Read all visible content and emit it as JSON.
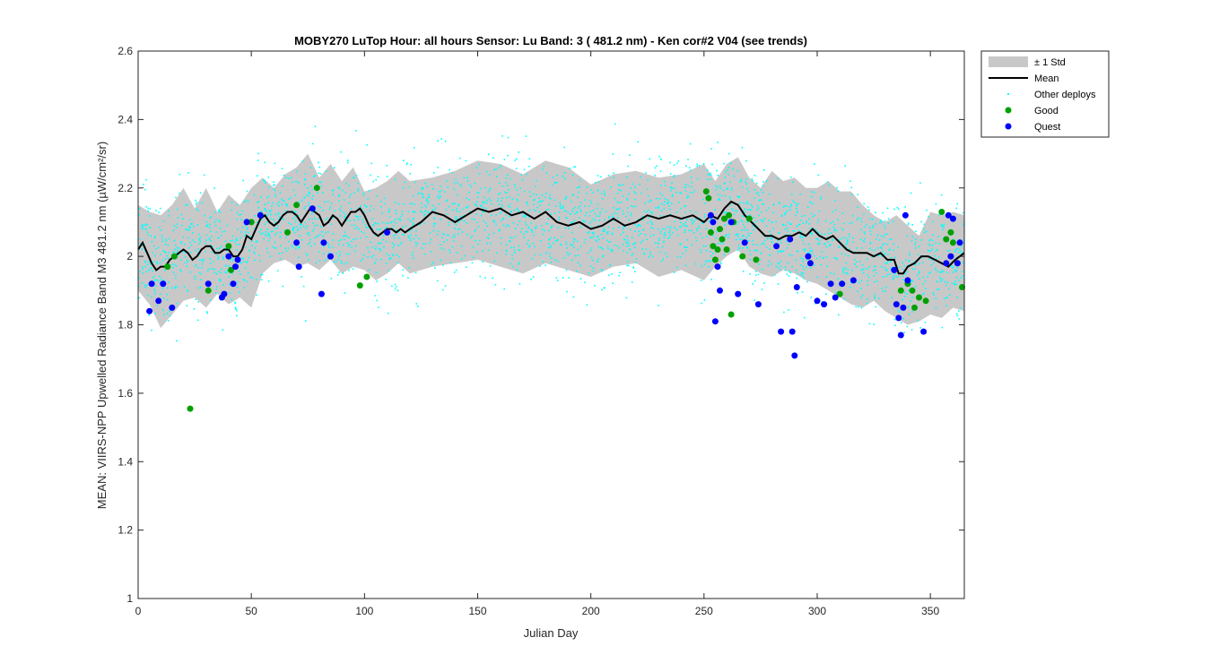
{
  "chart_data": {
    "type": "scatter",
    "title": "MOBY270   LuTop  Hour: all hours  Sensor: Lu Band: 3 ( 481.2 nm)  - Ken cor#2 V04 (see trends)",
    "xlabel": "Julian Day",
    "ylabel": "MEAN: VIIRS-NPP Upwelled Radiance Band M3 481.2 nm (µW/cm²/sr)",
    "xlim": [
      0,
      365
    ],
    "ylim": [
      1,
      2.6
    ],
    "xticks": [
      "0",
      "50",
      "100",
      "150",
      "200",
      "250",
      "300",
      "350"
    ],
    "yticks": [
      "1",
      "1.2",
      "1.4",
      "1.6",
      "1.8",
      "2",
      "2.2",
      "2.4",
      "2.6"
    ],
    "grid": false,
    "legend_position": "outside-top-right",
    "legend": [
      {
        "label": "± 1 Std",
        "kind": "band",
        "color": "#c8c8c8"
      },
      {
        "label": "Mean",
        "kind": "line",
        "color": "#000000"
      },
      {
        "label": "Other deploys",
        "kind": "dot",
        "color": "#00ffff"
      },
      {
        "label": "Good",
        "kind": "marker",
        "color": "#00a000"
      },
      {
        "label": "Quest",
        "kind": "marker",
        "color": "#0000ff"
      }
    ],
    "series": [
      {
        "name": "Mean",
        "x": [
          0,
          2,
          4,
          6,
          8,
          10,
          12,
          14,
          16,
          18,
          20,
          22,
          24,
          26,
          28,
          30,
          32,
          34,
          36,
          38,
          40,
          42,
          44,
          46,
          48,
          50,
          52,
          54,
          56,
          58,
          60,
          62,
          64,
          66,
          68,
          70,
          72,
          74,
          76,
          78,
          80,
          82,
          84,
          86,
          88,
          90,
          92,
          94,
          96,
          98,
          100,
          102,
          104,
          106,
          108,
          110,
          112,
          114,
          116,
          118,
          120,
          125,
          130,
          135,
          140,
          145,
          150,
          155,
          160,
          165,
          170,
          175,
          180,
          185,
          190,
          195,
          200,
          205,
          210,
          215,
          220,
          225,
          230,
          235,
          240,
          245,
          250,
          253,
          256,
          259,
          262,
          265,
          268,
          271,
          274,
          277,
          280,
          283,
          286,
          289,
          292,
          295,
          298,
          301,
          304,
          307,
          310,
          313,
          316,
          319,
          322,
          325,
          328,
          331,
          334,
          336,
          338,
          340,
          343,
          346,
          349,
          352,
          355,
          358,
          361,
          363,
          365
        ],
        "values": [
          2.02,
          2.04,
          2.01,
          1.98,
          1.96,
          1.97,
          1.97,
          1.99,
          2.0,
          2.01,
          2.02,
          2.01,
          1.99,
          2.0,
          2.02,
          2.03,
          2.03,
          2.01,
          2.01,
          2.02,
          2.02,
          2.0,
          2.0,
          2.02,
          2.06,
          2.05,
          2.08,
          2.11,
          2.12,
          2.1,
          2.09,
          2.1,
          2.12,
          2.13,
          2.13,
          2.12,
          2.1,
          2.12,
          2.14,
          2.13,
          2.12,
          2.09,
          2.1,
          2.12,
          2.11,
          2.09,
          2.11,
          2.13,
          2.13,
          2.14,
          2.12,
          2.09,
          2.07,
          2.06,
          2.07,
          2.08,
          2.08,
          2.07,
          2.08,
          2.07,
          2.08,
          2.1,
          2.13,
          2.12,
          2.1,
          2.12,
          2.14,
          2.13,
          2.14,
          2.12,
          2.13,
          2.11,
          2.13,
          2.1,
          2.09,
          2.1,
          2.08,
          2.09,
          2.11,
          2.09,
          2.1,
          2.12,
          2.11,
          2.12,
          2.11,
          2.12,
          2.1,
          2.12,
          2.11,
          2.14,
          2.16,
          2.15,
          2.12,
          2.1,
          2.08,
          2.06,
          2.06,
          2.05,
          2.06,
          2.06,
          2.07,
          2.06,
          2.08,
          2.06,
          2.05,
          2.06,
          2.04,
          2.02,
          2.01,
          2.01,
          2.01,
          2.0,
          2.01,
          1.99,
          1.99,
          1.95,
          1.95,
          1.97,
          1.98,
          2.0,
          2.0,
          1.99,
          1.98,
          1.97,
          1.99,
          2.0,
          2.01
        ]
      },
      {
        "name": "± 1 Std",
        "x": [
          0,
          5,
          10,
          15,
          20,
          25,
          30,
          35,
          40,
          45,
          50,
          55,
          60,
          65,
          70,
          75,
          80,
          85,
          90,
          95,
          100,
          105,
          110,
          115,
          120,
          130,
          140,
          150,
          160,
          170,
          180,
          190,
          200,
          210,
          220,
          230,
          240,
          250,
          255,
          260,
          265,
          270,
          275,
          280,
          285,
          290,
          295,
          300,
          305,
          310,
          315,
          320,
          325,
          330,
          335,
          340,
          345,
          350,
          355,
          360,
          365
        ],
        "upper": [
          2.15,
          2.13,
          2.12,
          2.15,
          2.2,
          2.14,
          2.2,
          2.13,
          2.18,
          2.15,
          2.2,
          2.23,
          2.2,
          2.24,
          2.26,
          2.3,
          2.23,
          2.27,
          2.22,
          2.26,
          2.19,
          2.2,
          2.22,
          2.25,
          2.22,
          2.23,
          2.25,
          2.28,
          2.27,
          2.24,
          2.28,
          2.26,
          2.21,
          2.24,
          2.25,
          2.23,
          2.24,
          2.27,
          2.22,
          2.27,
          2.29,
          2.23,
          2.2,
          2.25,
          2.22,
          2.23,
          2.2,
          2.2,
          2.22,
          2.19,
          2.19,
          2.15,
          2.12,
          2.1,
          2.12,
          2.09,
          2.06,
          2.13,
          2.12,
          2.13,
          2.12
        ],
        "lower": [
          1.9,
          1.86,
          1.79,
          1.83,
          1.87,
          1.88,
          1.85,
          1.89,
          1.86,
          1.88,
          1.85,
          1.95,
          1.98,
          1.99,
          1.97,
          1.98,
          1.96,
          1.99,
          1.95,
          1.97,
          1.96,
          1.93,
          1.95,
          1.98,
          1.95,
          1.97,
          1.98,
          1.99,
          1.97,
          1.95,
          1.98,
          1.96,
          1.94,
          1.97,
          1.98,
          1.94,
          1.96,
          1.93,
          1.97,
          2.0,
          2.02,
          1.97,
          1.95,
          1.94,
          1.96,
          1.95,
          1.93,
          1.92,
          1.9,
          1.88,
          1.86,
          1.85,
          1.87,
          1.84,
          1.82,
          1.8,
          1.81,
          1.83,
          1.82,
          1.85,
          1.84
        ]
      },
      {
        "name": "Good",
        "x": [
          13,
          16,
          23,
          31,
          40,
          41,
          50,
          54,
          66,
          70,
          79,
          98,
          101,
          251,
          252,
          253,
          254,
          255,
          256,
          257,
          258,
          259,
          260,
          261,
          262,
          263,
          267,
          270,
          273,
          310,
          337,
          340,
          342,
          343,
          345,
          348,
          355,
          357,
          359,
          360,
          362,
          364
        ],
        "values": [
          1.97,
          2.0,
          1.555,
          1.9,
          2.03,
          1.96,
          2.1,
          2.12,
          2.07,
          2.15,
          2.2,
          1.915,
          1.94,
          2.19,
          2.17,
          2.07,
          2.03,
          1.99,
          2.02,
          2.08,
          2.05,
          2.11,
          2.02,
          2.12,
          1.83,
          2.1,
          2.0,
          2.11,
          1.99,
          1.89,
          1.9,
          1.92,
          1.9,
          1.85,
          1.88,
          1.87,
          2.13,
          2.05,
          2.07,
          2.04,
          1.98,
          1.91
        ]
      },
      {
        "name": "Quest",
        "x": [
          5,
          6,
          9,
          11,
          15,
          31,
          37,
          38,
          40,
          42,
          43,
          44,
          48,
          54,
          70,
          71,
          77,
          81,
          82,
          85,
          110,
          253,
          254,
          255,
          256,
          257,
          262,
          265,
          268,
          274,
          282,
          284,
          288,
          289,
          290,
          291,
          296,
          297,
          300,
          303,
          306,
          308,
          311,
          316,
          334,
          335,
          336,
          337,
          338,
          339,
          340,
          347,
          357,
          358,
          359,
          360,
          362,
          363
        ],
        "values": [
          1.84,
          1.92,
          1.87,
          1.92,
          1.85,
          1.92,
          1.88,
          1.89,
          2.0,
          1.92,
          1.97,
          1.99,
          2.1,
          2.12,
          2.04,
          1.97,
          2.14,
          1.89,
          2.04,
          2.0,
          2.07,
          2.12,
          2.1,
          1.81,
          1.97,
          1.9,
          2.1,
          1.89,
          2.04,
          1.86,
          2.03,
          1.78,
          2.05,
          1.78,
          1.71,
          1.91,
          2.0,
          1.98,
          1.87,
          1.86,
          1.92,
          1.88,
          1.92,
          1.93,
          1.96,
          1.86,
          1.82,
          1.77,
          1.85,
          2.12,
          1.93,
          1.78,
          1.98,
          2.12,
          2.0,
          2.11,
          1.98,
          2.04
        ]
      },
      {
        "name": "Other deploys",
        "note_count": 3000
      }
    ]
  }
}
